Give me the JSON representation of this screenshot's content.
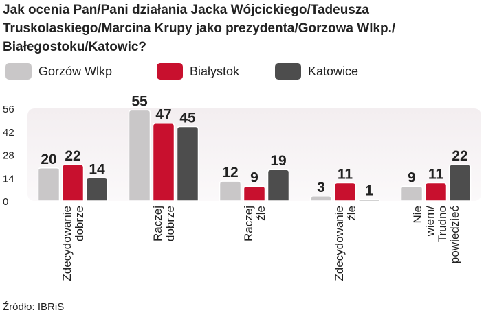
{
  "chart_data": {
    "type": "bar",
    "title": "Jak ocenia Pan/Pani działania Jacka Wójcickiego/Tadeusza Truskolaskiego/Marcina Krupy jako prezydenta/Gorzowa Wlkp./ Białegostoku/Katowic?",
    "categories": [
      "Zdecydowanie dobrze",
      "Raczej dobrze",
      "Raczej źle",
      "Zdecydowanie źle",
      "Nie wiem/ Trudno powiedzieć"
    ],
    "series": [
      {
        "name": "Gorzów Wlkp",
        "color": "#c9c7c8",
        "values": [
          20,
          55,
          12,
          3,
          9
        ]
      },
      {
        "name": "Białystok",
        "color": "#c8102e",
        "values": [
          22,
          47,
          9,
          11,
          11
        ]
      },
      {
        "name": "Katowice",
        "color": "#4d4d4d",
        "values": [
          14,
          45,
          19,
          1,
          22
        ]
      }
    ],
    "ylim": [
      0,
      56
    ],
    "yticks": [
      0,
      14,
      28,
      42,
      56
    ],
    "source": "Źródło: IBRiS"
  }
}
